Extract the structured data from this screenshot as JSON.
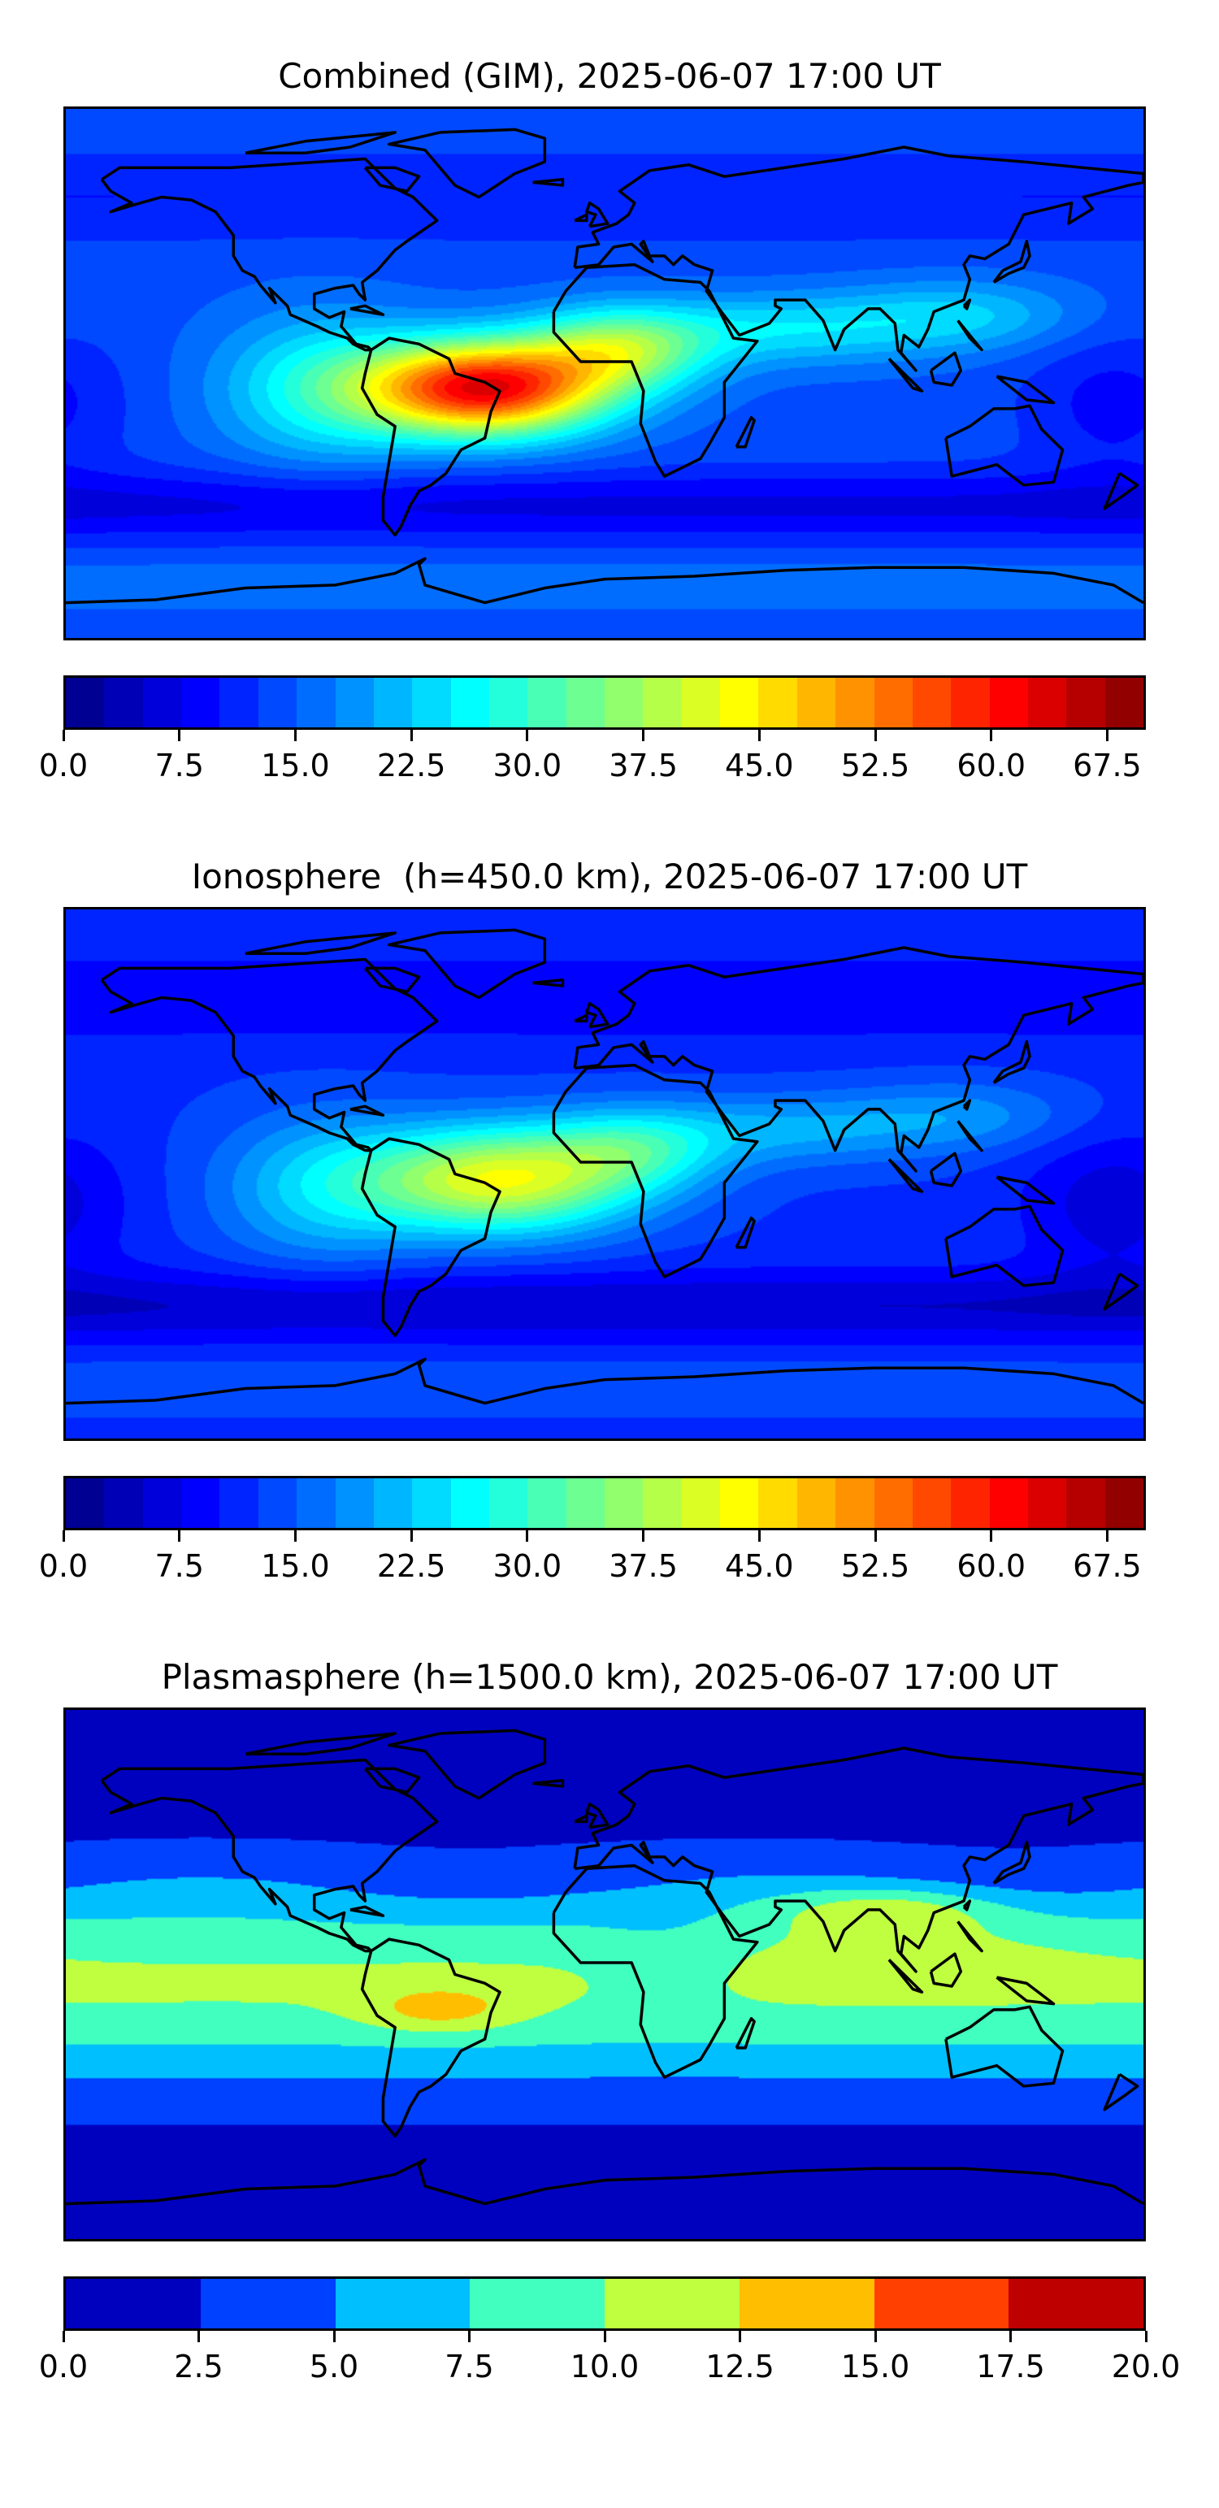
{
  "panels": [
    {
      "id": "combined",
      "title": "Combined (GIM), 2025-06-07 17:00 UT",
      "colorbar": {
        "min": 0,
        "max": 70,
        "step": 2.5,
        "tick_labels": [
          "0.0",
          "7.5",
          "15.0",
          "22.5",
          "30.0",
          "37.5",
          "45.0",
          "52.5",
          "60.0",
          "67.5"
        ],
        "tick_values": [
          0,
          7.5,
          15,
          22.5,
          30,
          37.5,
          45,
          52.5,
          60,
          67.5
        ]
      }
    },
    {
      "id": "ionosphere",
      "title": "Ionosphere  (h=450.0 km), 2025-06-07 17:00 UT",
      "colorbar": {
        "min": 0,
        "max": 70,
        "step": 2.5,
        "tick_labels": [
          "0.0",
          "7.5",
          "15.0",
          "22.5",
          "30.0",
          "37.5",
          "45.0",
          "52.5",
          "60.0",
          "67.5"
        ],
        "tick_values": [
          0,
          7.5,
          15,
          22.5,
          30,
          37.5,
          45,
          52.5,
          60,
          67.5
        ]
      }
    },
    {
      "id": "plasmasphere",
      "title": "Plasmasphere (h=1500.0 km), 2025-06-07 17:00 UT",
      "colorbar": {
        "min": 0,
        "max": 20,
        "step": 2.5,
        "tick_labels": [
          "0.0",
          "2.5",
          "5.0",
          "7.5",
          "10.0",
          "12.5",
          "15.0",
          "17.5",
          "20.0"
        ],
        "tick_values": [
          0,
          2.5,
          5,
          7.5,
          10,
          12.5,
          15,
          17.5,
          20
        ]
      }
    }
  ],
  "colormap": "jet"
}
